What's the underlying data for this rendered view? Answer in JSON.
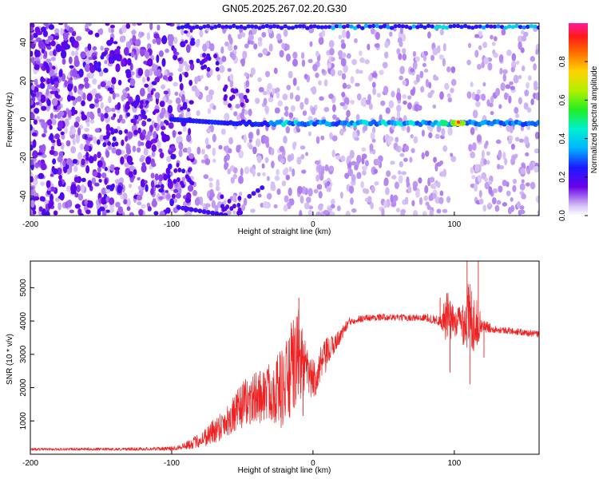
{
  "figure": {
    "title": "GN05.2025.267.02.20.G30"
  },
  "chart_data": [
    {
      "type": "heatmap",
      "xlabel": "Height of straight line (km)",
      "ylabel": "Frequency (Hz)",
      "xlim": [
        -200,
        160
      ],
      "ylim": [
        -50,
        50
      ],
      "xticks": [
        -200,
        -100,
        0,
        100
      ],
      "yticks": [
        -40,
        -20,
        0,
        20,
        40
      ],
      "colorbar": {
        "label": "Normalized spectral amplitude",
        "range": [
          0,
          1
        ],
        "ticks": [
          "0.0",
          "0.2",
          "0.4",
          "0.6",
          "0.8"
        ],
        "colormap": "rainbow (white → purple → blue → cyan → green → yellow → red → magenta)"
      },
      "features": [
        {
          "name": "direct signal line",
          "frequency_hz": -2,
          "x_range": [
            -100,
            160
          ],
          "peak_amplitude_at_x": 103
        },
        {
          "name": "upper signal line",
          "frequency_hz": 48,
          "x_range": [
            -95,
            160
          ]
        },
        {
          "name": "diffuse scatter",
          "x_range": [
            -200,
            -90
          ]
        }
      ]
    },
    {
      "type": "line",
      "xlabel": "Height of straight line (km)",
      "ylabel": "SNR (10 * v/v)",
      "xlim": [
        -200,
        160
      ],
      "ylim": [
        0,
        5800
      ],
      "xticks": [
        -200,
        -100,
        0,
        100
      ],
      "yticks": [
        1000,
        2000,
        3000,
        4000,
        5000
      ],
      "series": [
        {
          "color": "#ee2222",
          "x": [
            -200,
            -180,
            -160,
            -140,
            -120,
            -100,
            -90,
            -80,
            -70,
            -60,
            -55,
            -50,
            -40,
            -30,
            -20,
            -15,
            -10,
            -5,
            0,
            5,
            10,
            15,
            20,
            25,
            30,
            40,
            50,
            60,
            70,
            80,
            90,
            95,
            100,
            105,
            110,
            115,
            120,
            125,
            130,
            140,
            150,
            160
          ],
          "values": [
            150,
            150,
            155,
            150,
            160,
            170,
            260,
            420,
            700,
            1050,
            1200,
            1500,
            1700,
            1900,
            2000,
            2500,
            3000,
            2500,
            2200,
            2600,
            3000,
            3300,
            3600,
            3950,
            4050,
            4100,
            4120,
            4100,
            4100,
            4100,
            4000,
            4050,
            3950,
            4000,
            4100,
            3950,
            3850,
            3800,
            3750,
            3700,
            3650,
            3600
          ]
        }
      ],
      "noise_amplitude": [
        40,
        40,
        40,
        40,
        50,
        60,
        120,
        220,
        400,
        500,
        600,
        700,
        800,
        900,
        1300,
        1500,
        1400,
        800,
        600,
        600,
        500,
        300,
        200,
        150,
        120,
        100,
        100,
        100,
        100,
        120,
        150,
        900,
        400,
        600,
        1200,
        800,
        200,
        150,
        100,
        100,
        100,
        100
      ]
    }
  ]
}
